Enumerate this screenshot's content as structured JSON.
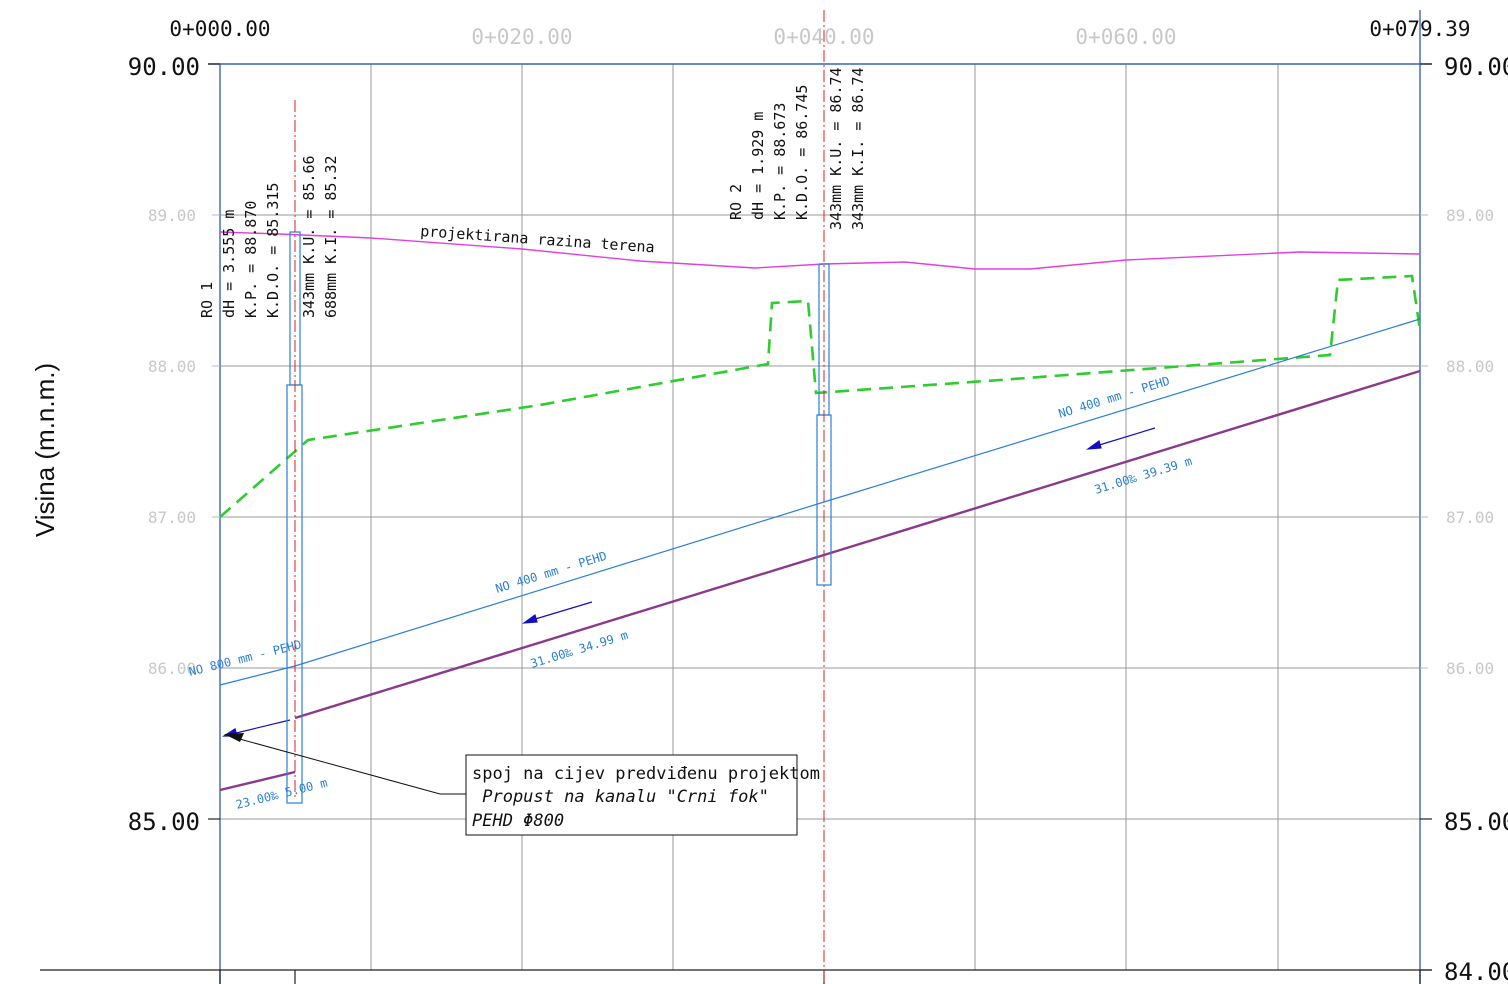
{
  "chainages": {
    "start": "0+000.00",
    "c20": "0+020.00",
    "c40": "0+040.00",
    "c60": "0+060.00",
    "end": "0+079.39"
  },
  "elevations": {
    "e90_left": "90.00",
    "e90_right": "90.00",
    "e89_left": "89.00",
    "e89_right": "89.00",
    "e88_left": "88.00",
    "e88_right": "88.00",
    "e87_left": "87.00",
    "e87_right": "87.00",
    "e86_left": "86.00",
    "e86_right": "86.00",
    "e85_left": "85.00",
    "e85_right": "85.00",
    "e84_right": "84.00"
  },
  "axis": {
    "ylabel": "Visina (m.n.m.)"
  },
  "terrain": {
    "label": "projektirana razina terena"
  },
  "manhole1": {
    "name": "RO 1",
    "dh": "dH = 3.555 m",
    "kp": "K.P. = 88.870",
    "kdo": "K.D.O. = 85.315",
    "ku": "343mm K.U. = 85.66",
    "ki": "688mm  K.I. = 85.32"
  },
  "manhole2": {
    "name": "RO 2",
    "dh": "dH = 1.929 m",
    "kp": "K.P. = 88.673",
    "kdo": "K.D.O. = 86.745",
    "ku": "343mm K.U. = 86.74",
    "ki": "343mm  K.I. = 86.74"
  },
  "pipes": {
    "seg1_label": "NO 400 mm - PEHD",
    "seg1_slope": "31.00‰ 34.99 m",
    "seg2_label": "NO 400 mm - PEHD",
    "seg2_slope": "31.00‰ 39.39 m",
    "seg0_label": "NO 800 mm - PEHD",
    "seg0_slope": "23.00‰ 5.00 m"
  },
  "note": {
    "line1": "spoj na cijev predviđenu projektom",
    "line2": " Propust na kanalu \"Crni fok\"",
    "line3": "PEHD Φ800"
  },
  "colors": {
    "grid": "#9a9a9a",
    "frame": "#3a66b8",
    "terrain": "#e040e0",
    "ground": "#2ecc2e",
    "pipe_crown": "#2a7fd4",
    "pipe_invert": "#8a3a8a",
    "flow_arrow": "#1010c0",
    "axis_red": "#dd2222"
  }
}
